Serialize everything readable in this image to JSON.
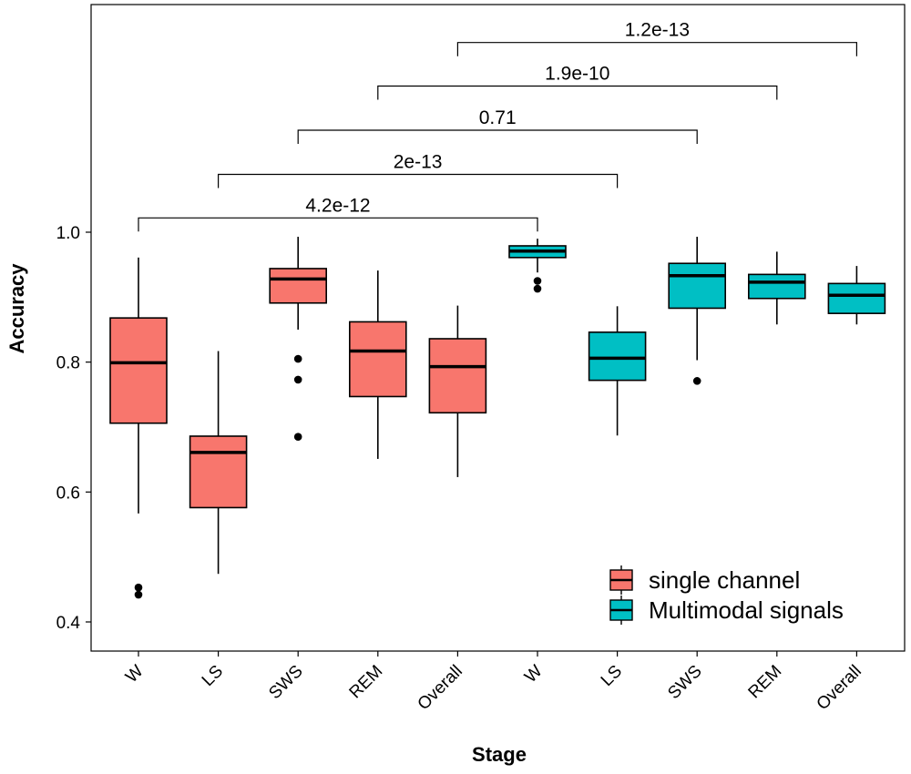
{
  "chart_data": {
    "type": "boxplot",
    "xlabel": "Stage",
    "ylabel": "Accuracy",
    "ylim": [
      0.4,
      1.0
    ],
    "yticks": [
      0.4,
      0.6,
      0.8,
      1.0
    ],
    "ytick_labels": [
      "0.4",
      "0.6",
      "0.8",
      "1.0"
    ],
    "grid": false,
    "legend_placement": "bottom-right",
    "series": [
      {
        "name": "single channel",
        "color": "#F8766D"
      },
      {
        "name": "Multimodal signals",
        "color": "#00BFC4"
      }
    ],
    "boxes": [
      {
        "label": "W",
        "series": 0,
        "whisker_low": 0.567,
        "q1": 0.706,
        "median": 0.799,
        "q3": 0.868,
        "whisker_high": 0.961,
        "outliers": [
          0.453,
          0.442
        ]
      },
      {
        "label": "LS",
        "series": 0,
        "whisker_low": 0.474,
        "q1": 0.576,
        "median": 0.661,
        "q3": 0.686,
        "whisker_high": 0.817,
        "outliers": []
      },
      {
        "label": "SWS",
        "series": 0,
        "whisker_low": 0.85,
        "q1": 0.891,
        "median": 0.928,
        "q3": 0.944,
        "whisker_high": 0.993,
        "outliers": [
          0.805,
          0.773,
          0.685
        ]
      },
      {
        "label": "REM",
        "series": 0,
        "whisker_low": 0.651,
        "q1": 0.747,
        "median": 0.817,
        "q3": 0.862,
        "whisker_high": 0.941,
        "outliers": []
      },
      {
        "label": "Overall",
        "series": 0,
        "whisker_low": 0.623,
        "q1": 0.722,
        "median": 0.793,
        "q3": 0.836,
        "whisker_high": 0.887,
        "outliers": []
      },
      {
        "label": "W",
        "series": 1,
        "whisker_low": 0.938,
        "q1": 0.961,
        "median": 0.971,
        "q3": 0.979,
        "whisker_high": 0.99,
        "outliers": [
          0.925,
          0.913
        ]
      },
      {
        "label": "LS",
        "series": 1,
        "whisker_low": 0.687,
        "q1": 0.772,
        "median": 0.806,
        "q3": 0.846,
        "whisker_high": 0.886,
        "outliers": []
      },
      {
        "label": "SWS",
        "series": 1,
        "whisker_low": 0.803,
        "q1": 0.883,
        "median": 0.933,
        "q3": 0.952,
        "whisker_high": 0.993,
        "outliers": [
          0.771
        ]
      },
      {
        "label": "REM",
        "series": 1,
        "whisker_low": 0.858,
        "q1": 0.898,
        "median": 0.923,
        "q3": 0.935,
        "whisker_high": 0.97,
        "outliers": []
      },
      {
        "label": "Overall",
        "series": 1,
        "whisker_low": 0.858,
        "q1": 0.875,
        "median": 0.903,
        "q3": 0.921,
        "whisker_high": 0.948,
        "outliers": []
      }
    ],
    "comparisons": [
      {
        "from": 0,
        "to": 5,
        "label": "4.2e-12",
        "y": 1.022
      },
      {
        "from": 1,
        "to": 6,
        "label": "2e-13",
        "y": 1.089
      },
      {
        "from": 2,
        "to": 7,
        "label": "0.71",
        "y": 1.157
      },
      {
        "from": 3,
        "to": 8,
        "label": "1.9e-10",
        "y": 1.225
      },
      {
        "from": 4,
        "to": 9,
        "label": "1.2e-13",
        "y": 1.292
      }
    ]
  }
}
